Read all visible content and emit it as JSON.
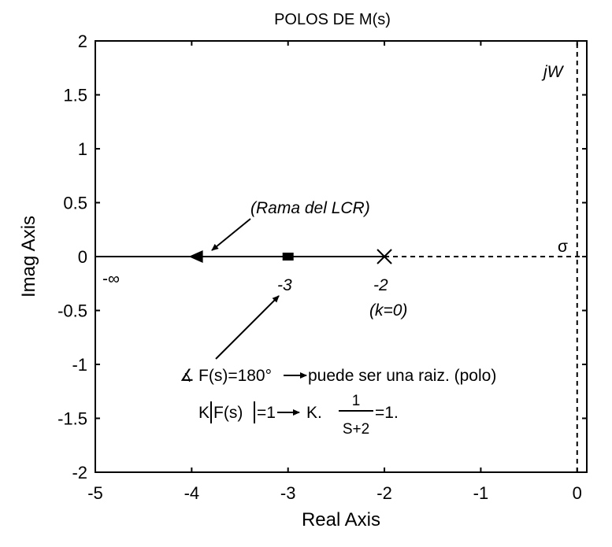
{
  "chart_data": {
    "type": "line",
    "title": "POLOS DE M(s)",
    "xlabel": "Real Axis",
    "ylabel": "Imag Axis",
    "xlim": [
      -5,
      0.1
    ],
    "ylim": [
      -2,
      2
    ],
    "x_ticks": [
      -5,
      -4,
      -3,
      -2,
      -1,
      0
    ],
    "x_tick_labels": [
      "-5",
      "-4",
      "-3",
      "-2",
      "-1",
      "0"
    ],
    "y_ticks": [
      2,
      1.5,
      1,
      0.5,
      0,
      -0.5,
      -1,
      -1.5,
      -2
    ],
    "y_tick_labels": [
      "2",
      "1.5",
      "1",
      "0.5",
      "0",
      "-0.5",
      "-1",
      "-1.5",
      "-2"
    ],
    "grid": false,
    "series": [
      {
        "name": "root-locus-branch",
        "style": "solid",
        "x": [
          -5,
          -2
        ],
        "y": [
          0,
          0
        ]
      },
      {
        "name": "real-axis-right",
        "style": "dashed",
        "x": [
          -2,
          0.1
        ],
        "y": [
          0,
          0
        ]
      },
      {
        "name": "imag-axis",
        "style": "dashed",
        "x": [
          0,
          0
        ],
        "y": [
          -2,
          2
        ]
      }
    ],
    "markers": [
      {
        "name": "open-loop-pole",
        "symbol": "x",
        "x": -2,
        "y": 0
      },
      {
        "name": "test-point",
        "symbol": "square",
        "x": -3,
        "y": 0
      },
      {
        "name": "direction-arrow",
        "symbol": "triangle-left",
        "x": -3.9,
        "y": 0
      }
    ],
    "annotations": {
      "jw_label": "jW",
      "sigma_label": "σ",
      "minus_infinity": "-∞",
      "minus_three": "-3",
      "minus_two": "-2",
      "k_zero": "(k=0)",
      "rama": "(Rama del LCR)",
      "angle_symbol": "∡",
      "angle_condition": "F(s)=180°",
      "angle_result": "puede ser una raiz. (polo)",
      "magnitude_left": "K",
      "magnitude_f": "F(s)",
      "magnitude_eq": "=1",
      "magnitude_k": "K.",
      "frac_num": "1",
      "frac_den": "S+2",
      "frac_result": "=1."
    }
  }
}
